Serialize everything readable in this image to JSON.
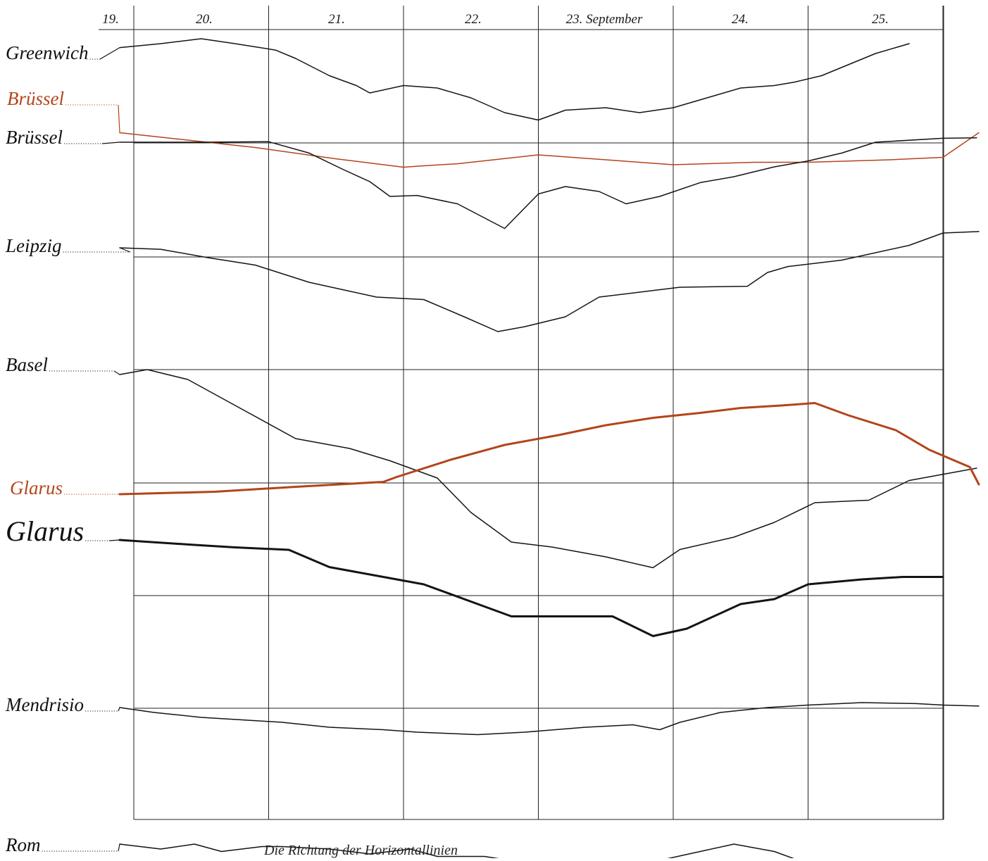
{
  "colors": {
    "black": "#141414",
    "red": "#b4441a",
    "grid": "#222222"
  },
  "footer_text": "Die Richtung der Horizontallinien",
  "chart_data": {
    "type": "line",
    "title": "",
    "xlabel": "",
    "ylabel": "",
    "x_unit": "day of September",
    "xlim": [
      19,
      25.5
    ],
    "day_labels": [
      {
        "x": 19,
        "label": "19."
      },
      {
        "x": 20,
        "label": "20."
      },
      {
        "x": 21,
        "label": "21."
      },
      {
        "x": 22,
        "label": "22."
      },
      {
        "x": 23,
        "label": "23. September"
      },
      {
        "x": 24,
        "label": "24."
      },
      {
        "x": 25,
        "label": "25."
      }
    ],
    "day_boundaries": [
      19,
      20,
      21,
      22,
      23,
      24,
      25,
      25.5
    ],
    "horizontal_reference_lines": 8,
    "grid": true,
    "legend": "left labels",
    "series": [
      {
        "name": "Greenwich",
        "color": "black",
        "weight": 1.5,
        "label_side": "left",
        "x": [
          19.0,
          19.2,
          19.5,
          19.75,
          20.05,
          20.2,
          20.45,
          20.65,
          20.75,
          21.0,
          21.25,
          21.5,
          21.75,
          22.0,
          22.2,
          22.5,
          22.75,
          23.0,
          23.25,
          23.5,
          23.75,
          23.9,
          24.1,
          24.5,
          24.75
        ],
        "y": [
          0.08,
          0.0,
          -0.1,
          0.0,
          0.13,
          0.3,
          0.65,
          0.85,
          1.0,
          0.85,
          0.9,
          1.1,
          1.4,
          1.55,
          1.35,
          1.3,
          1.4,
          1.3,
          1.1,
          0.9,
          0.85,
          0.78,
          0.65,
          0.2,
          0.0
        ]
      },
      {
        "name": "Brüssel",
        "color": "red",
        "weight": 1.5,
        "label_side": "left",
        "x": [
          19.0,
          19.9,
          20.5,
          21.0,
          21.1,
          21.4,
          22.0,
          23.0,
          23.6,
          24.0,
          24.6,
          25.0,
          25.5
        ],
        "y": [
          0.55,
          0.85,
          1.08,
          1.25,
          1.23,
          1.18,
          1.0,
          1.2,
          1.15,
          1.15,
          1.1,
          1.05,
          0.55
        ]
      },
      {
        "name": "Brüssel",
        "color": "black",
        "weight": 1.5,
        "label_side": "left",
        "x": [
          19.0,
          19.5,
          20.0,
          20.3,
          20.55,
          20.75,
          20.9,
          21.1,
          21.4,
          21.75,
          22.0,
          22.2,
          22.45,
          22.65,
          22.9,
          23.2,
          23.45,
          23.75,
          24.0,
          24.25,
          24.5,
          25.0,
          25.25
        ],
        "y": [
          0.0,
          0.0,
          -0.01,
          0.22,
          0.55,
          0.8,
          1.1,
          1.08,
          1.25,
          1.75,
          1.05,
          0.9,
          1.0,
          1.25,
          1.1,
          0.82,
          0.7,
          0.5,
          0.38,
          0.22,
          0.0,
          -0.08,
          -0.09
        ]
      },
      {
        "name": "Leipzig",
        "color": "black",
        "weight": 1.5,
        "label_side": "left",
        "x": [
          19.0,
          19.2,
          19.55,
          19.9,
          20.3,
          20.55,
          20.8,
          21.15,
          21.45,
          21.7,
          21.9,
          22.2,
          22.45,
          22.75,
          23.05,
          23.55,
          23.7,
          23.85,
          24.25,
          24.75,
          25.0,
          25.4
        ],
        "y": [
          0.0,
          0.03,
          0.2,
          0.35,
          0.7,
          0.85,
          1.0,
          1.05,
          1.4,
          1.7,
          1.6,
          1.4,
          1.0,
          0.9,
          0.8,
          0.78,
          0.5,
          0.38,
          0.25,
          -0.05,
          -0.3,
          -0.33
        ]
      },
      {
        "name": "Basel",
        "color": "black",
        "weight": 1.5,
        "label_side": "left",
        "x": [
          19.0,
          19.1,
          19.4,
          19.8,
          20.2,
          20.6,
          20.9,
          21.25,
          21.5,
          21.8,
          22.1,
          22.5,
          22.85,
          23.05,
          23.45,
          23.75,
          24.05,
          24.45,
          24.75,
          25.05,
          25.25
        ],
        "y": [
          0.1,
          0.0,
          0.2,
          0.8,
          1.4,
          1.6,
          1.85,
          2.2,
          2.9,
          3.5,
          3.6,
          3.8,
          4.02,
          3.65,
          3.4,
          3.1,
          2.7,
          2.65,
          2.25,
          2.1,
          2.0
        ]
      },
      {
        "name": "Glarus",
        "color": "red",
        "weight": 3.0,
        "label_side": "left",
        "x": [
          19.0,
          19.6,
          20.2,
          20.85,
          20.95,
          21.35,
          21.75,
          22.15,
          22.5,
          22.85,
          23.2,
          23.5,
          23.8,
          24.05,
          24.3,
          24.65,
          24.9,
          25.2,
          25.5
        ],
        "y": [
          0.0,
          -0.05,
          -0.15,
          -0.25,
          -0.35,
          -0.7,
          -1.0,
          -1.2,
          -1.4,
          -1.55,
          -1.65,
          -1.75,
          -1.8,
          -1.85,
          -1.6,
          -1.3,
          -0.9,
          -0.55,
          -0.2
        ]
      },
      {
        "name": "Glarus",
        "color": "black",
        "weight": 3.0,
        "label_side": "left",
        "x": [
          19.0,
          19.45,
          19.75,
          20.15,
          20.45,
          20.85,
          21.15,
          21.5,
          21.8,
          22.1,
          22.55,
          22.85,
          23.1,
          23.5,
          23.75,
          24.0,
          24.4,
          24.7,
          25.0
        ],
        "y": [
          0.0,
          0.1,
          0.15,
          0.2,
          0.55,
          0.75,
          0.9,
          1.25,
          1.55,
          1.55,
          1.55,
          1.95,
          1.8,
          1.3,
          1.2,
          0.9,
          0.8,
          0.75,
          0.75
        ]
      },
      {
        "name": "Mendrisio",
        "color": "black",
        "weight": 1.5,
        "label_side": "left",
        "x": [
          19.0,
          19.15,
          19.5,
          19.8,
          20.1,
          20.45,
          20.85,
          21.1,
          21.55,
          21.9,
          22.35,
          22.7,
          22.9,
          23.05,
          23.35,
          23.7,
          24.0,
          24.4,
          24.8,
          25.0,
          25.45
        ],
        "y": [
          0.0,
          0.1,
          0.2,
          0.25,
          0.3,
          0.4,
          0.45,
          0.5,
          0.55,
          0.5,
          0.4,
          0.35,
          0.45,
          0.3,
          0.1,
          0.0,
          -0.05,
          -0.1,
          -0.08,
          -0.05,
          -0.03
        ]
      },
      {
        "name": "Rom",
        "color": "black",
        "weight": 1.5,
        "label_side": "left",
        "x": [
          19.0,
          19.2,
          19.45,
          19.65,
          19.95,
          20.1,
          20.45,
          20.75,
          21.05,
          21.25,
          21.6,
          21.95,
          22.3,
          22.7,
          22.95,
          23.2,
          23.45,
          23.75,
          24.0,
          24.25,
          24.6,
          25.05,
          25.25
        ],
        "y": [
          0.0,
          0.1,
          0.0,
          0.15,
          0.05,
          0.05,
          0.1,
          0.2,
          0.1,
          0.25,
          0.25,
          0.4,
          0.45,
          0.4,
          0.3,
          0.15,
          0.0,
          0.15,
          0.4,
          0.7,
          0.55,
          0.55,
          0.5
        ]
      }
    ]
  }
}
